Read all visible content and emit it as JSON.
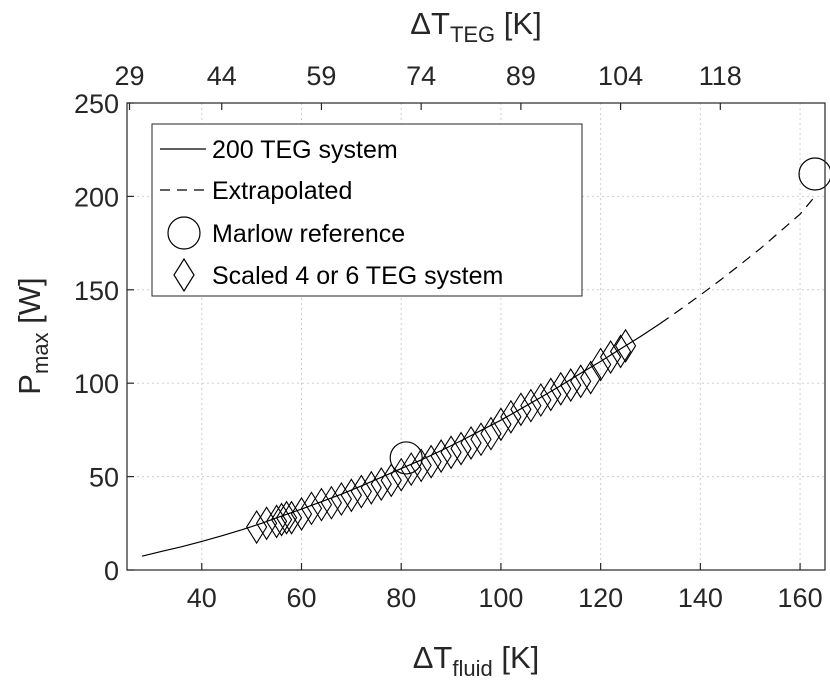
{
  "chart_data": {
    "type": "line",
    "title": "",
    "xlabel": {
      "main": "ΔT",
      "sub": "fluid",
      "unit": "[K]"
    },
    "ylabel": {
      "main": "P",
      "sub": "max",
      "unit": "[W]"
    },
    "top_xlabel": {
      "main": "ΔT",
      "sub": "TEG",
      "unit": "[K]"
    },
    "xlim": [
      25,
      165
    ],
    "ylim": [
      0,
      250
    ],
    "xticks": [
      40,
      60,
      80,
      100,
      120,
      140,
      160
    ],
    "yticks": [
      0,
      50,
      100,
      150,
      200,
      250
    ],
    "top_xticks": [
      {
        "at": 25.5,
        "label": "29"
      },
      {
        "at": 44,
        "label": "44"
      },
      {
        "at": 64,
        "label": "59"
      },
      {
        "at": 84,
        "label": "74"
      },
      {
        "at": 104,
        "label": "89"
      },
      {
        "at": 124,
        "label": "104"
      },
      {
        "at": 144,
        "label": "118"
      }
    ],
    "grid": true,
    "legend_position": "top-left",
    "series": [
      {
        "name": "200 TEG system",
        "style": "solid",
        "x": [
          28,
          32,
          36,
          40,
          44,
          48,
          52,
          56,
          60,
          64,
          68,
          72,
          76,
          80,
          84,
          88,
          92,
          96,
          100,
          104,
          108,
          112,
          116,
          120,
          124,
          128,
          132
        ],
        "y": [
          7.4,
          10.0,
          12.5,
          15.3,
          18.3,
          21.5,
          25.0,
          28.9,
          32.6,
          36.6,
          40.6,
          45.0,
          49.6,
          54.3,
          58.9,
          63.9,
          69.2,
          74.7,
          80.2,
          86.3,
          92.4,
          98.7,
          105.3,
          111.7,
          118.4,
          125.0,
          132.0
        ]
      },
      {
        "name": "Extrapolated",
        "style": "dashed",
        "x": [
          132,
          136,
          140,
          144,
          148,
          152,
          156,
          160,
          163
        ],
        "y": [
          132.0,
          139.5,
          147.2,
          155.2,
          163.5,
          172.0,
          181.2,
          190.5,
          200.0
        ]
      },
      {
        "name": "Marlow reference",
        "marker": "circle",
        "x": [
          81,
          163
        ],
        "y": [
          60,
          212
        ]
      },
      {
        "name": "Scaled 4 or 6 TEG system",
        "marker": "diamond",
        "x": [
          51,
          53,
          55,
          56,
          57,
          58,
          60,
          62,
          64,
          66,
          68,
          70,
          72,
          74,
          76,
          78,
          80,
          82,
          84,
          86,
          88,
          90,
          92,
          94,
          96,
          98,
          100,
          102,
          104,
          106,
          108,
          110,
          112,
          114,
          116,
          118,
          120,
          122,
          124,
          125
        ],
        "y": [
          23,
          25,
          26,
          27,
          28,
          28,
          30,
          33,
          35,
          36,
          38,
          40,
          42,
          44,
          46,
          48,
          51,
          54,
          56,
          58,
          61,
          63,
          65,
          68,
          70,
          73,
          78,
          82,
          86,
          88,
          91,
          94,
          97,
          99,
          101,
          103,
          110,
          114,
          117,
          120
        ]
      }
    ]
  }
}
